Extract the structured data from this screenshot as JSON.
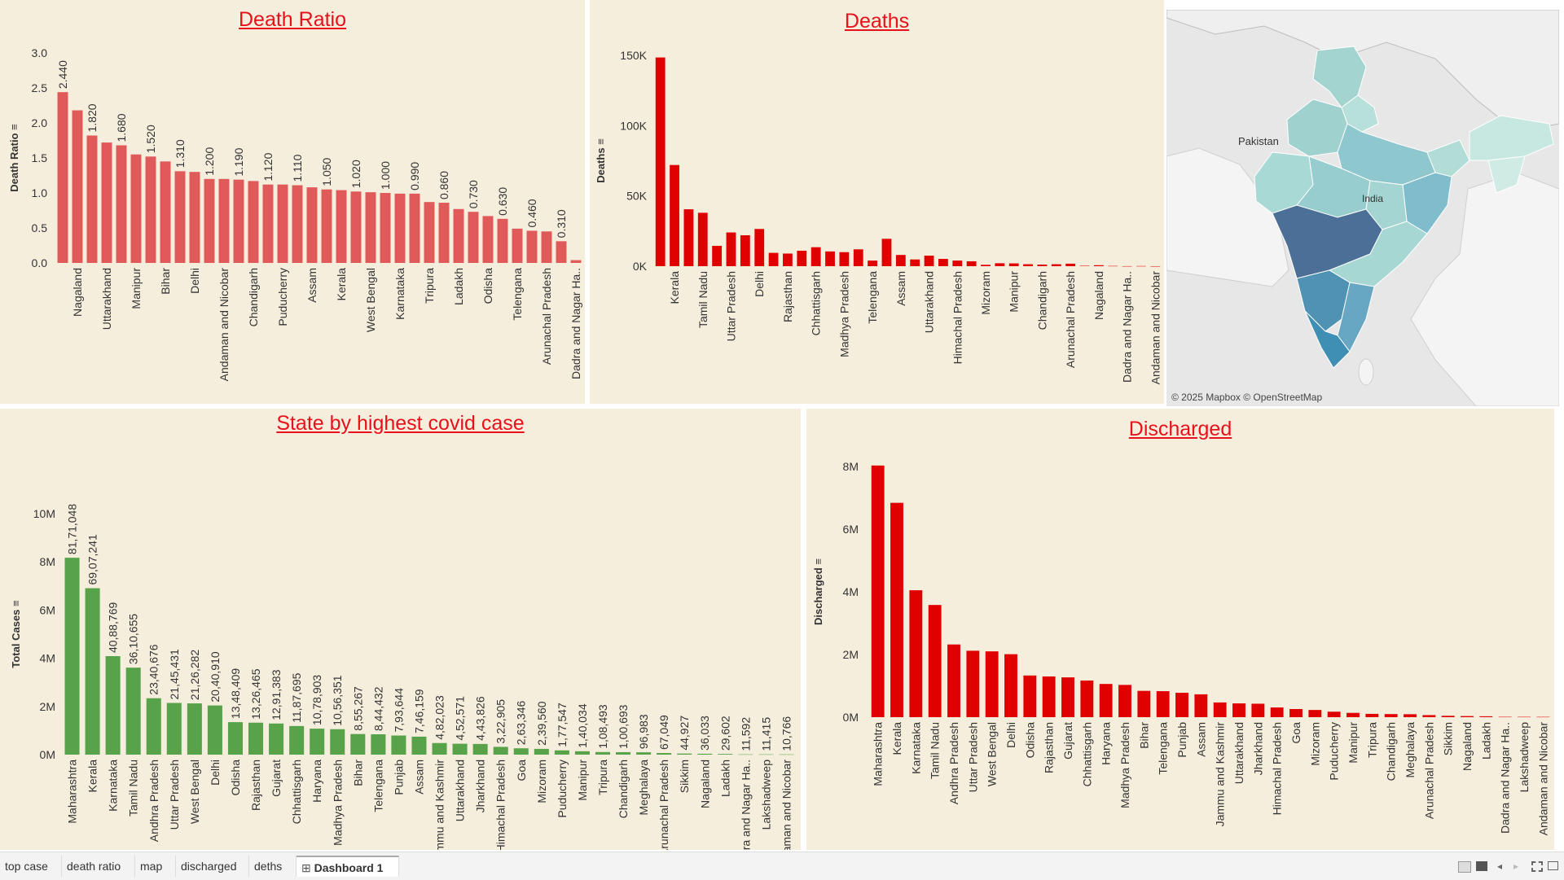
{
  "colors": {
    "panel_bg": "#f6eedd",
    "title": "#e8101a",
    "ratio_bar": "#e05a5a",
    "deaths_bar": "#e00000",
    "cases_bar": "#58a34a",
    "discharged_bar": "#e00000"
  },
  "ratio_panel": {
    "title": "Death Ratio"
  },
  "deaths_panel": {
    "title": "Deaths"
  },
  "cases_panel": {
    "title": "State by highest covid case"
  },
  "discharged_panel": {
    "title": "Discharged"
  },
  "map": {
    "labels": [
      "Pakistan",
      "India"
    ],
    "credit": "© 2025 Mapbox © OpenStreetMap"
  },
  "tabs": [
    {
      "label": "top case",
      "icon": ""
    },
    {
      "label": "death ratio",
      "icon": ""
    },
    {
      "label": "map",
      "icon": ""
    },
    {
      "label": "discharged",
      "icon": ""
    },
    {
      "label": "deths",
      "icon": ""
    },
    {
      "label": "Dashboard 1",
      "icon": "grid-icon",
      "active": true
    }
  ],
  "status_icons": [
    "grid-view-icon",
    "single-view-icon",
    "prev-icon",
    "next-icon",
    "fullscreen-icon",
    "present-icon"
  ],
  "chart_data": [
    {
      "id": "ratio",
      "type": "bar",
      "title": "Death Ratio",
      "ylabel": "Death Ratio",
      "ylim": [
        0,
        3
      ],
      "yticks": [
        0.0,
        0.5,
        1.0,
        1.5,
        2.0,
        2.5,
        3.0
      ],
      "ytick_labels": [
        "0.0",
        "0.5",
        "1.0",
        "1.5",
        "2.0",
        "2.5",
        "3.0"
      ],
      "shown_labels": [
        "Nagaland",
        "Uttarakhand",
        "Manipur",
        "Bihar",
        "Delhi",
        "Andaman and Nicobar",
        "Chandigarh",
        "Puducherry",
        "Assam",
        "Kerala",
        "West Bengal",
        "Karnataka",
        "Tripura",
        "Ladakh",
        "Odisha",
        "Telengana",
        "Arunachal Pradesh",
        "Dadra and Nagar Ha.."
      ],
      "values": [
        2.44,
        2.18,
        1.82,
        1.72,
        1.68,
        1.55,
        1.52,
        1.45,
        1.31,
        1.3,
        1.2,
        1.2,
        1.19,
        1.17,
        1.12,
        1.12,
        1.11,
        1.08,
        1.05,
        1.04,
        1.02,
        1.01,
        1.0,
        0.99,
        0.99,
        0.87,
        0.86,
        0.77,
        0.73,
        0.67,
        0.63,
        0.49,
        0.46,
        0.45,
        0.31,
        0.04
      ],
      "data_labels": [
        "2.440",
        "",
        "1.820",
        "",
        "1.680",
        "",
        "1.520",
        "",
        "1.310",
        "",
        "1.200",
        "",
        "1.190",
        "",
        "1.120",
        "",
        "1.110",
        "",
        "1.050",
        "",
        "1.020",
        "",
        "1.000",
        "",
        "0.990",
        "",
        "0.860",
        "",
        "0.730",
        "",
        "0.630",
        "",
        "0.460",
        "",
        "0.310",
        ""
      ]
    },
    {
      "id": "deaths",
      "type": "bar",
      "title": "Deaths",
      "ylabel": "Deaths",
      "ylim": [
        0,
        150000
      ],
      "yticks": [
        0,
        50000,
        100000,
        150000
      ],
      "ytick_labels": [
        "0K",
        "50K",
        "100K",
        "150K"
      ],
      "shown_labels": [
        "Kerala",
        "Tamil Nadu",
        "Uttar Pradesh",
        "Delhi",
        "Rajasthan",
        "Chhattisgarh",
        "Madhya Pradesh",
        "Telengana",
        "Assam",
        "Uttarakhand",
        "Himachal Pradesh",
        "Mizoram",
        "Manipur",
        "Chandigarh",
        "Arunachal Pradesh",
        "Nagaland",
        "Dadra and Nagar Ha..",
        "Andaman and Nicobar"
      ],
      "values": [
        148500,
        72000,
        40500,
        38000,
        14500,
        24000,
        22000,
        26500,
        9500,
        9000,
        11000,
        13500,
        10500,
        10000,
        12000,
        4000,
        19500,
        8000,
        4800,
        7500,
        5200,
        4000,
        3500,
        1000,
        2100,
        2000,
        1400,
        1150,
        1400,
        1800,
        300,
        700,
        200,
        50,
        130,
        4
      ]
    },
    {
      "id": "cases",
      "type": "bar",
      "title": "State by highest covid case",
      "ylabel": "Total Cases",
      "ylim": [
        0,
        10000000
      ],
      "yticks": [
        0,
        2000000,
        4000000,
        6000000,
        8000000,
        10000000
      ],
      "ytick_labels": [
        "0M",
        "2M",
        "4M",
        "6M",
        "8M",
        "10M"
      ],
      "categories": [
        "Maharashtra",
        "Kerala",
        "Karnataka",
        "Tamil Nadu",
        "Andhra Pradesh",
        "Uttar Pradesh",
        "West Bengal",
        "Delhi",
        "Odisha",
        "Rajasthan",
        "Gujarat",
        "Chhattisgarh",
        "Haryana",
        "Madhya Pradesh",
        "Bihar",
        "Telengana",
        "Punjab",
        "Assam",
        "Jammu and Kashmir",
        "Uttarakhand",
        "Jharkhand",
        "Himachal Pradesh",
        "Goa",
        "Mizoram",
        "Puducherry",
        "Manipur",
        "Tripura",
        "Chandigarh",
        "Meghalaya",
        "Arunachal Pradesh",
        "Sikkim",
        "Nagaland",
        "Ladakh",
        "Dadra and Nagar Ha..",
        "Lakshadweep",
        "Andaman and Nicobar"
      ],
      "values": [
        8171048,
        6907241,
        4088769,
        3610655,
        2340676,
        2145431,
        2126282,
        2040910,
        1348409,
        1326465,
        1291383,
        1187695,
        1078903,
        1056351,
        855267,
        844432,
        793644,
        746159,
        482023,
        452571,
        443826,
        322905,
        263346,
        239560,
        177547,
        140034,
        108493,
        100693,
        96983,
        67049,
        44927,
        36033,
        29602,
        11592,
        11415,
        10766
      ],
      "data_labels": [
        "81,71,048",
        "69,07,241",
        "40,88,769",
        "36,10,655",
        "23,40,676",
        "21,45,431",
        "21,26,282",
        "20,40,910",
        "13,48,409",
        "13,26,465",
        "12,91,383",
        "11,87,695",
        "10,78,903",
        "10,56,351",
        "8,55,267",
        "8,44,432",
        "7,93,644",
        "7,46,159",
        "4,82,023",
        "4,52,571",
        "4,43,826",
        "3,22,905",
        "2,63,346",
        "2,39,560",
        "1,77,547",
        "1,40,034",
        "1,08,493",
        "1,00,693",
        "96,983",
        "67,049",
        "44,927",
        "36,033",
        "29,602",
        "11,592",
        "11,415",
        "10,766"
      ]
    },
    {
      "id": "discharged",
      "type": "bar",
      "title": "Discharged",
      "ylabel": "Discharged",
      "ylim": [
        0,
        8000000
      ],
      "yticks": [
        0,
        2000000,
        4000000,
        6000000,
        8000000
      ],
      "ytick_labels": [
        "0M",
        "2M",
        "4M",
        "6M",
        "8M"
      ],
      "categories": [
        "Maharashtra",
        "Kerala",
        "Karnataka",
        "Tamil Nadu",
        "Andhra Pradesh",
        "Uttar Pradesh",
        "West Bengal",
        "Delhi",
        "Odisha",
        "Rajasthan",
        "Gujarat",
        "Chhattisgarh",
        "Haryana",
        "Madhya Pradesh",
        "Bihar",
        "Telengana",
        "Punjab",
        "Assam",
        "Jammu and Kashmir",
        "Uttarakhand",
        "Jharkhand",
        "Himachal Pradesh",
        "Goa",
        "Mizoram",
        "Puducherry",
        "Manipur",
        "Tripura",
        "Chandigarh",
        "Meghalaya",
        "Arunachal Pradesh",
        "Sikkim",
        "Nagaland",
        "Ladakh",
        "Dadra and Nagar Ha..",
        "Lakshadweep",
        "Andaman and Nicobar"
      ],
      "values": [
        8030000,
        6840000,
        4050000,
        3580000,
        2320000,
        2120000,
        2100000,
        2010000,
        1330000,
        1300000,
        1270000,
        1170000,
        1060000,
        1030000,
        840000,
        830000,
        780000,
        730000,
        470000,
        440000,
        430000,
        310000,
        260000,
        230000,
        175000,
        138000,
        106000,
        99000,
        95000,
        66000,
        44000,
        35000,
        29000,
        11500,
        11000,
        10500
      ]
    }
  ]
}
